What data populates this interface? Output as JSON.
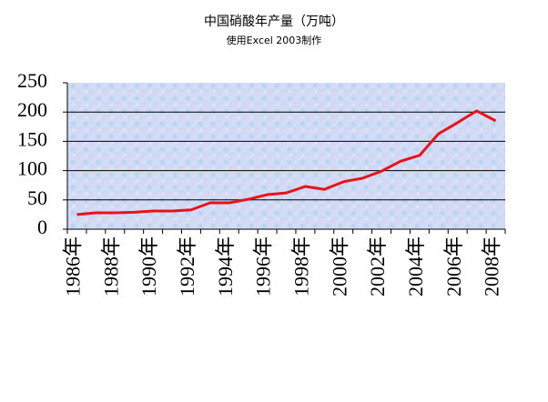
{
  "chart_data": {
    "type": "line",
    "title": "中国硝酸年产量（万吨）",
    "subtitle": "使用Excel 2003制作",
    "categories": [
      "1986年",
      null,
      "1988年",
      null,
      "1990年",
      null,
      "1992年",
      null,
      "1994年",
      null,
      "1996年",
      null,
      "1998年",
      null,
      "2000年",
      null,
      "2002年",
      null,
      "2004年",
      null,
      "2006年",
      null,
      "2008年"
    ],
    "series": [
      {
        "color": "#e8141b",
        "values": [
          25,
          28,
          28,
          29,
          31,
          31,
          33,
          45,
          45,
          51,
          59,
          62,
          73,
          68,
          81,
          87,
          99,
          116,
          126,
          163,
          182,
          202,
          185
        ]
      }
    ],
    "ylim": [
      0,
      250
    ],
    "yticks": [
      0,
      50,
      100,
      150,
      200,
      250
    ],
    "grid": true
  }
}
